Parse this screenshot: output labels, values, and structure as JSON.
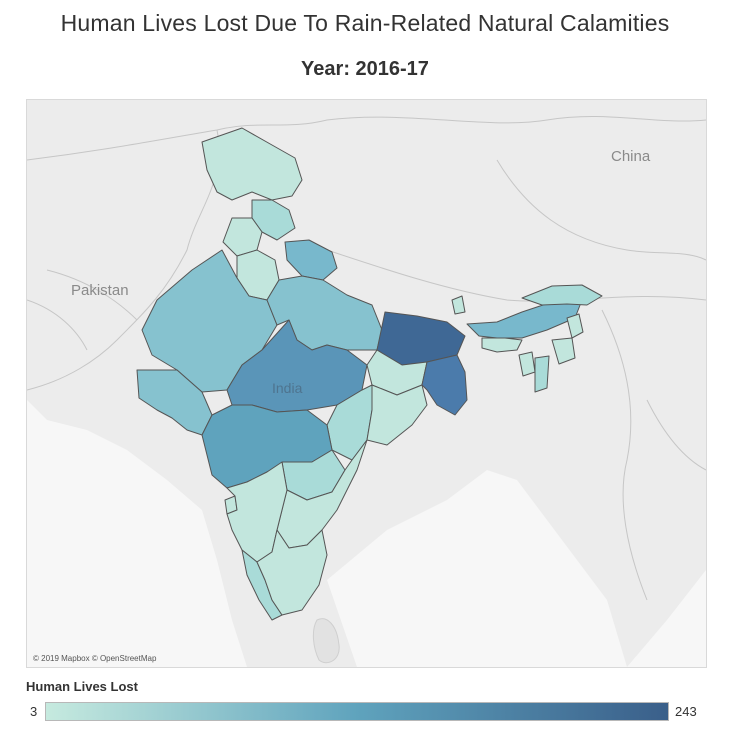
{
  "title": "Human Lives Lost Due To Rain-Related Natural Calamities",
  "subtitle": "Year: 2016-17",
  "map": {
    "labels": {
      "china": "China",
      "pakistan": "Pakistan",
      "india": "India"
    },
    "attribution": "© 2019 Mapbox © OpenStreetMap"
  },
  "legend": {
    "title": "Human Lives Lost",
    "min": "3",
    "max": "243",
    "color_low": "#c6eadf",
    "color_mid": "#5fa3bd",
    "color_high": "#3a5f8a"
  },
  "colors": {
    "background_land": "#ececec",
    "sea": "#f5f5f5",
    "border": "#555555",
    "level1": "#c2e6dd",
    "level2": "#8fcbd3",
    "level3": "#5fa3bd",
    "level4": "#4d83ac",
    "level5": "#3f6895"
  }
}
